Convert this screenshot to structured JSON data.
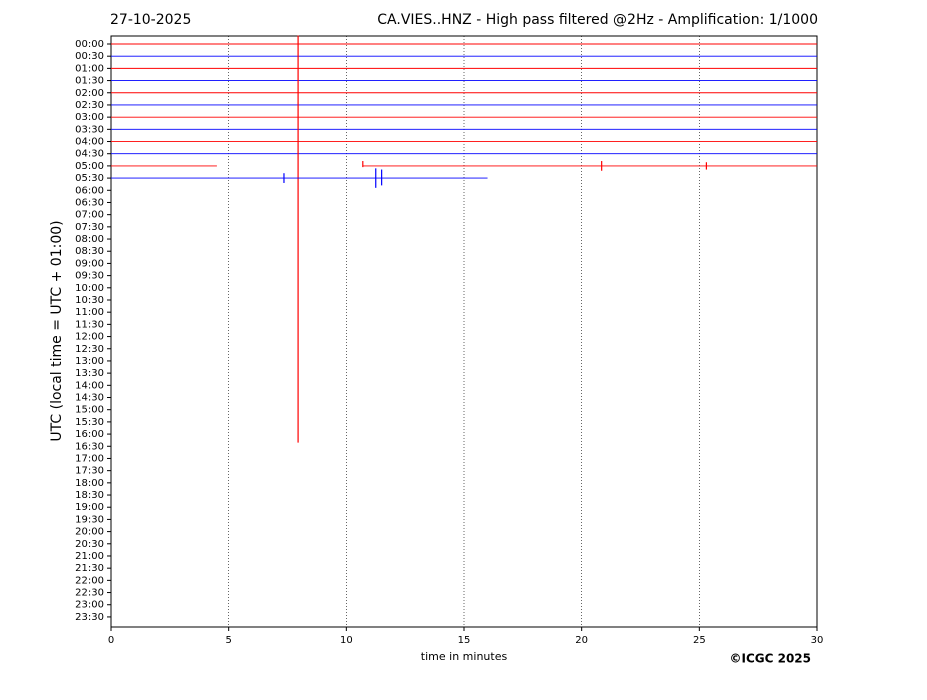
{
  "chart_data": {
    "type": "helicorder",
    "date": "27-10-2025",
    "title": "CA.VIES..HNZ - High pass filtered @2Hz - Amplification: 1/1000",
    "xlabel": "time in minutes",
    "ylabel": "UTC (local time = UTC + 01:00)",
    "credit": "©ICGC 2025",
    "xlim": [
      0,
      30
    ],
    "xticks": [
      0,
      5,
      10,
      15,
      20,
      25,
      30
    ],
    "grid": true,
    "categories": [
      "00:00",
      "00:30",
      "01:00",
      "01:30",
      "02:00",
      "02:30",
      "03:00",
      "03:30",
      "04:00",
      "04:30",
      "05:00",
      "05:30",
      "06:00",
      "06:30",
      "07:00",
      "07:30",
      "08:00",
      "08:30",
      "09:00",
      "09:30",
      "10:00",
      "10:30",
      "11:00",
      "11:30",
      "12:00",
      "12:30",
      "13:00",
      "13:30",
      "14:00",
      "14:30",
      "15:00",
      "15:30",
      "16:00",
      "16:30",
      "17:00",
      "17:30",
      "18:00",
      "18:30",
      "19:00",
      "19:30",
      "20:00",
      "20:30",
      "21:00",
      "21:30",
      "22:00",
      "22:30",
      "23:00",
      "23:30"
    ],
    "traces": [
      {
        "color": "#ff0000",
        "segments": [
          [
            0,
            30
          ]
        ]
      },
      {
        "color": "#0000ff",
        "segments": [
          [
            0,
            30
          ]
        ]
      },
      {
        "color": "#ff0000",
        "segments": [
          [
            0,
            30
          ]
        ]
      },
      {
        "color": "#0000ff",
        "segments": [
          [
            0,
            30
          ]
        ]
      },
      {
        "color": "#ff0000",
        "segments": [
          [
            0,
            30
          ]
        ]
      },
      {
        "color": "#0000ff",
        "segments": [
          [
            0,
            30
          ]
        ]
      },
      {
        "color": "#ff0000",
        "segments": [
          [
            0,
            30
          ]
        ]
      },
      {
        "color": "#0000ff",
        "segments": [
          [
            0,
            30
          ]
        ]
      },
      {
        "color": "#ff0000",
        "segments": [
          [
            0,
            30
          ]
        ]
      },
      {
        "color": "#0000ff",
        "segments": [
          [
            0,
            30
          ]
        ]
      },
      {
        "color": "#ff0000",
        "segments": [
          [
            0,
            4.5
          ],
          [
            10.7,
            30
          ]
        ],
        "spikes": [
          {
            "x": 7.95,
            "up": 10.7,
            "down": 22.7
          },
          {
            "x": 10.7,
            "up": 0.4,
            "down": 0.1
          },
          {
            "x": 20.85,
            "up": 0.4,
            "down": 0.4
          },
          {
            "x": 25.3,
            "up": 0.3,
            "down": 0.3
          }
        ]
      },
      {
        "color": "#0000ff",
        "segments": [
          [
            0,
            16
          ]
        ],
        "spikes": [
          {
            "x": 7.35,
            "up": 0.4,
            "down": 0.4
          },
          {
            "x": 11.25,
            "up": 0.8,
            "down": 0.8
          },
          {
            "x": 11.5,
            "up": 0.7,
            "down": 0.6
          }
        ]
      }
    ]
  }
}
